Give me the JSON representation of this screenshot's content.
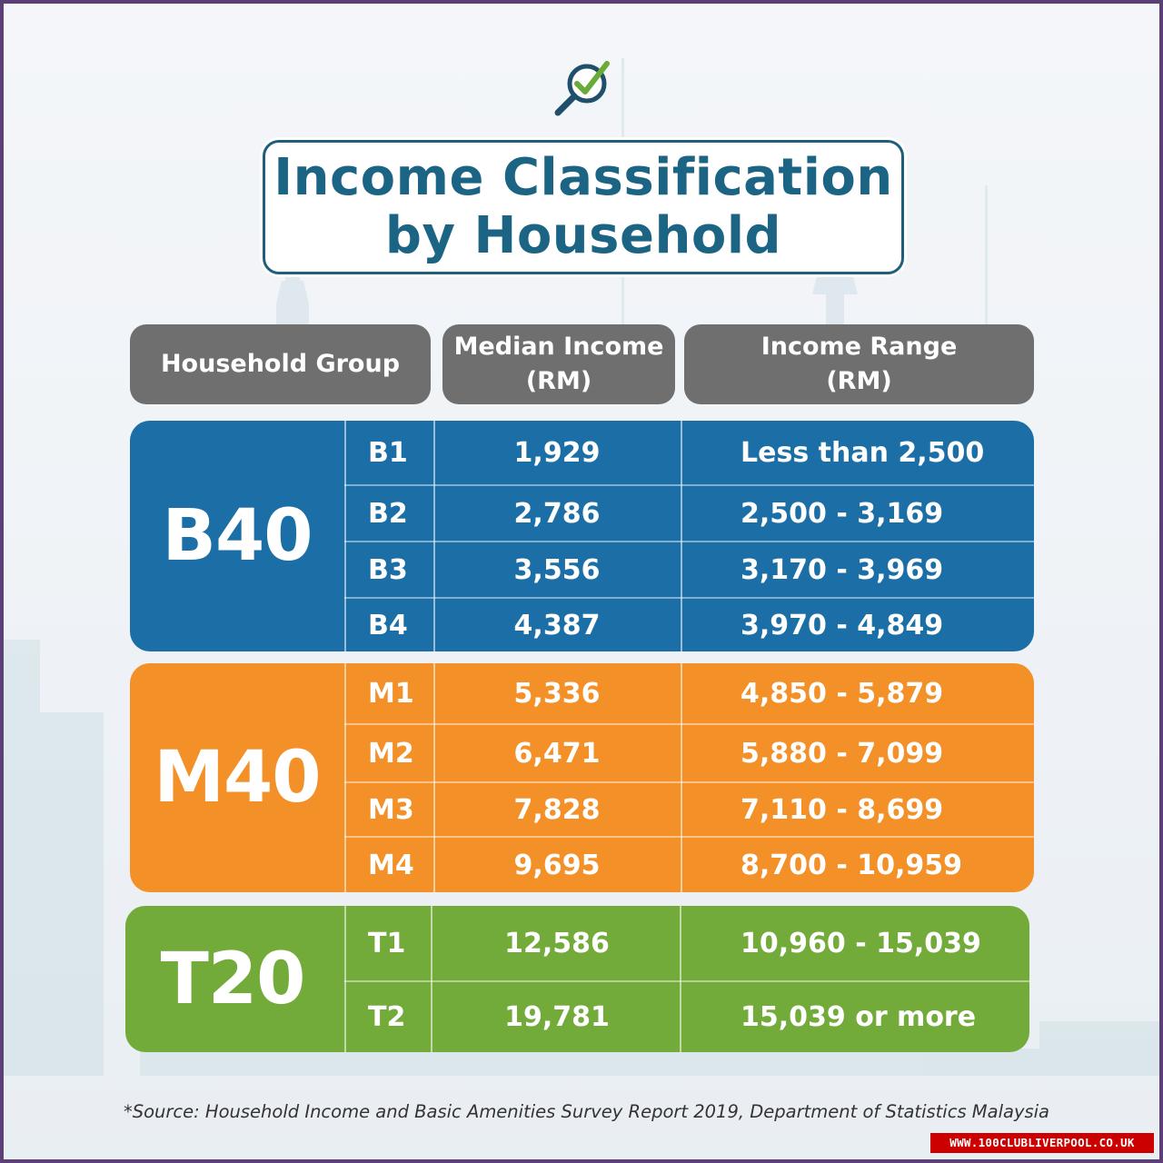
{
  "title": {
    "line1": "Income Classification",
    "line2": "by Household"
  },
  "headers": {
    "group": "Household Group",
    "median_line1": "Median Income",
    "median_line2": "(RM)",
    "range_line1": "Income Range",
    "range_line2": "(RM)"
  },
  "groups": {
    "b40": {
      "label": "B40",
      "rows": [
        {
          "sub": "B1",
          "median": "1,929",
          "range": "Less than  2,500"
        },
        {
          "sub": "B2",
          "median": "2,786",
          "range": "2,500 - 3,169"
        },
        {
          "sub": "B3",
          "median": "3,556",
          "range": "3,170 - 3,969"
        },
        {
          "sub": "B4",
          "median": "4,387",
          "range": "3,970 - 4,849"
        }
      ]
    },
    "m40": {
      "label": "M40",
      "rows": [
        {
          "sub": "M1",
          "median": "5,336",
          "range": "4,850 - 5,879"
        },
        {
          "sub": "M2",
          "median": "6,471",
          "range": "5,880 - 7,099"
        },
        {
          "sub": "M3",
          "median": "7,828",
          "range": "7,110 - 8,699"
        },
        {
          "sub": "M4",
          "median": "9,695",
          "range": "8,700 - 10,959"
        }
      ]
    },
    "t20": {
      "label": "T20",
      "rows": [
        {
          "sub": "T1",
          "median": "12,586",
          "range": "10,960 - 15,039"
        },
        {
          "sub": "T2",
          "median": "19,781",
          "range": "15,039 or more"
        }
      ]
    }
  },
  "source": "*Source:  Household Income and Basic Amenities Survey Report 2019, Department of Statistics Malaysia",
  "watermark": "WWW.100CLUBLIVERPOOL.CO.UK",
  "colors": {
    "title": "#1c6484",
    "header": "#6f6f6f",
    "b40": "#1b6fa6",
    "m40": "#f39028",
    "t20": "#73ab3b",
    "frame": "#5d3f78"
  }
}
